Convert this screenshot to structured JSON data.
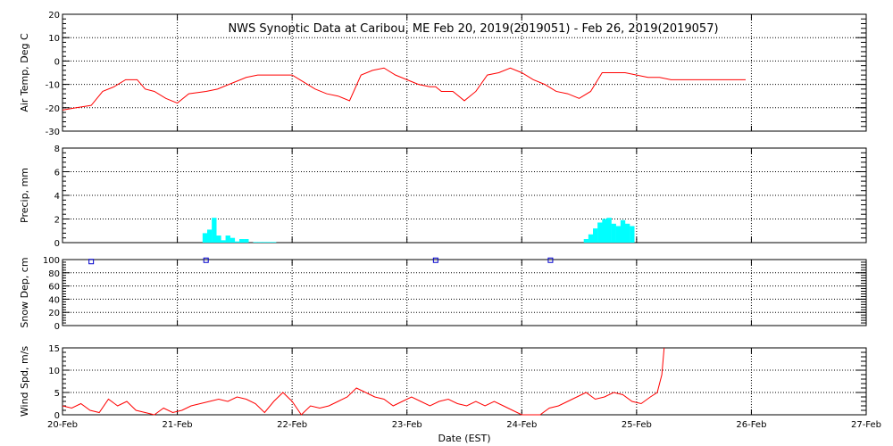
{
  "chart_data": {
    "title": "NWS Synoptic Data at Caribou, ME   Feb 20, 2019(2019051) - Feb 26, 2019(2019057)",
    "xlabel": "Date (EST)",
    "x_ticks": [
      "20-Feb",
      "21-Feb",
      "22-Feb",
      "23-Feb",
      "24-Feb",
      "25-Feb",
      "26-Feb",
      "27-Feb"
    ],
    "xlim_days": [
      0,
      7
    ],
    "grid": true,
    "panels": [
      {
        "id": "air-temp",
        "type": "line",
        "ylabel": "Air Temp, Deg C",
        "ylim": [
          -30,
          20
        ],
        "y_ticks": [
          20,
          10,
          0,
          -10,
          -20,
          -30
        ],
        "color": "#ff0000",
        "series": [
          {
            "x": [
              0,
              0.12,
              0.25,
              0.35,
              0.45,
              0.55,
              0.65,
              0.72,
              0.8,
              0.9,
              1.0,
              1.1,
              1.25,
              1.35,
              1.5,
              1.6,
              1.7,
              1.8,
              2.0,
              2.1,
              2.2,
              2.3,
              2.4,
              2.5,
              2.6,
              2.7,
              2.8,
              2.9,
              3.0,
              3.1,
              3.2,
              3.25,
              3.3,
              3.4,
              3.5,
              3.6,
              3.7,
              3.8,
              3.9,
              4.0,
              4.1,
              4.2,
              4.3,
              4.4,
              4.5,
              4.6,
              4.7,
              4.8,
              4.9,
              5.0,
              5.1,
              5.2,
              5.3,
              5.5,
              5.7,
              5.9,
              5.95
            ],
            "y": [
              -21,
              -20,
              -19,
              -13,
              -11,
              -8,
              -8,
              -12,
              -13,
              -16,
              -18,
              -14,
              -13,
              -12,
              -9,
              -7,
              -6,
              -6,
              -6,
              -9,
              -12,
              -14,
              -15,
              -17,
              -6,
              -4,
              -3,
              -6,
              -8,
              -10,
              -11,
              -11,
              -13,
              -13,
              -17,
              -13,
              -6,
              -5,
              -3,
              -5,
              -8,
              -10,
              -13,
              -14,
              -16,
              -13,
              -5,
              -5,
              -5,
              -6,
              -7,
              -7,
              -8,
              -8,
              -8,
              -8,
              -8
            ]
          }
        ]
      },
      {
        "id": "precip",
        "type": "bar",
        "ylabel": "Precip, mm",
        "ylim": [
          0,
          8
        ],
        "y_ticks": [
          8,
          6,
          4,
          2,
          0
        ],
        "color": "#00ffff",
        "bar_width_days": 0.0417,
        "series": [
          {
            "x": [
              1.22,
              1.26,
              1.3,
              1.34,
              1.38,
              1.42,
              1.46,
              1.5,
              1.54,
              1.58,
              1.66,
              1.7,
              1.74,
              1.78,
              1.82,
              4.54,
              4.58,
              4.62,
              4.66,
              4.7,
              4.74,
              4.78,
              4.82,
              4.86,
              4.9,
              4.94
            ],
            "y": [
              0.8,
              1.1,
              2.1,
              0.6,
              0.2,
              0.6,
              0.4,
              0.1,
              0.3,
              0.3,
              0.05,
              0.05,
              0.05,
              0.05,
              0.05,
              0.3,
              0.7,
              1.2,
              1.7,
              2.0,
              2.1,
              1.6,
              1.4,
              1.9,
              1.6,
              1.4
            ]
          }
        ]
      },
      {
        "id": "snow-depth",
        "type": "scatter",
        "ylabel": "Snow Dep, cm",
        "ylim": [
          0,
          100
        ],
        "y_ticks": [
          100,
          80,
          60,
          40,
          20,
          0
        ],
        "color": "#0000cc",
        "series": [
          {
            "x": [
              0.25,
              1.25,
              3.25,
              4.25
            ],
            "y": [
              97,
              99,
              99,
              99
            ]
          }
        ]
      },
      {
        "id": "wind-speed",
        "type": "line",
        "ylabel": "Wind Spd, m/s",
        "ylim": [
          0,
          15
        ],
        "y_ticks": [
          15,
          10,
          5,
          0
        ],
        "color": "#ff0000",
        "series": [
          {
            "x": [
              0,
              0.08,
              0.16,
              0.24,
              0.32,
              0.4,
              0.48,
              0.56,
              0.64,
              0.72,
              0.8,
              0.88,
              0.96,
              1.04,
              1.12,
              1.2,
              1.28,
              1.36,
              1.44,
              1.52,
              1.6,
              1.68,
              1.76,
              1.84,
              1.92,
              2.0,
              2.08,
              2.16,
              2.24,
              2.32,
              2.4,
              2.48,
              2.56,
              2.64,
              2.72,
              2.8,
              2.88,
              2.96,
              3.04,
              3.12,
              3.2,
              3.28,
              3.36,
              3.44,
              3.52,
              3.6,
              3.68,
              3.76,
              3.84,
              3.92,
              4.0,
              4.08,
              4.16,
              4.24,
              4.32,
              4.4,
              4.48,
              4.56,
              4.64,
              4.72,
              4.8,
              4.88,
              4.96,
              5.04,
              5.12,
              5.18,
              5.22,
              5.24
            ],
            "y": [
              2,
              1.5,
              2.5,
              1,
              0.5,
              3.5,
              2,
              3,
              1,
              0.5,
              0,
              1.5,
              0.5,
              1,
              2,
              2.5,
              3,
              3.5,
              3,
              4,
              3.5,
              2.5,
              0.5,
              3,
              5,
              3,
              0,
              2,
              1.5,
              2,
              3,
              4,
              6,
              5,
              4,
              3.5,
              2,
              3,
              4,
              3,
              2,
              3,
              3.5,
              2.5,
              2,
              3,
              2,
              3,
              2,
              1,
              0,
              0,
              0,
              1.5,
              2,
              3,
              4,
              5,
              3.5,
              4,
              5,
              4.5,
              3,
              2.5,
              4,
              5,
              9,
              15
            ]
          }
        ]
      }
    ]
  }
}
